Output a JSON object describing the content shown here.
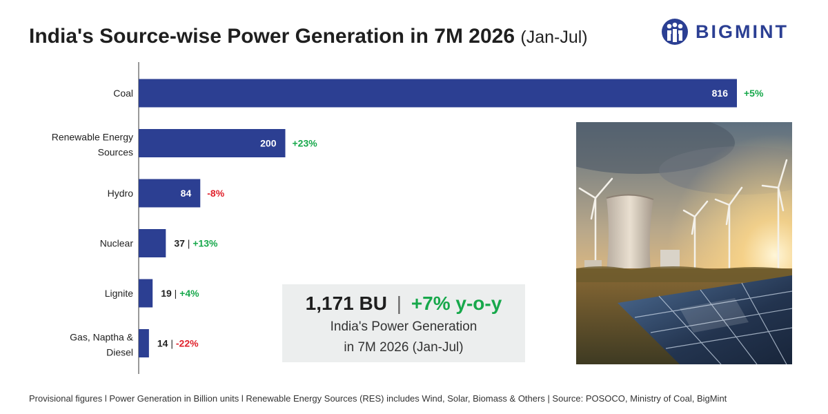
{
  "title": "India's Source-wise Power Generation in 7M 2026",
  "title_suffix": "(Jan-Jul)",
  "logo": {
    "text": "BIGMINT",
    "icon": "bigmint-people-icon",
    "color": "#2b3f93"
  },
  "chart_data": {
    "type": "bar",
    "orientation": "horizontal",
    "categories": [
      "Coal",
      "Renewable Energy Sources",
      "Hydro",
      "Nuclear",
      "Lignite",
      "Gas, Naptha & Diesel"
    ],
    "category_labels": [
      [
        "Coal"
      ],
      [
        "Renewable Energy",
        "Sources"
      ],
      [
        "Hydro"
      ],
      [
        "Nuclear"
      ],
      [
        "Lignite"
      ],
      [
        "Gas, Naptha &",
        "Diesel"
      ]
    ],
    "values": [
      816,
      200,
      84,
      37,
      19,
      14
    ],
    "value_labels": [
      "816",
      "200",
      "84",
      "37",
      "19",
      "14"
    ],
    "growth": [
      "+5%",
      "+23%",
      "-8%",
      "+13%",
      "+4%",
      "-22%"
    ],
    "growth_direction": [
      "up",
      "up",
      "down",
      "up",
      "up",
      "down"
    ],
    "xlim": [
      0,
      880
    ],
    "bar_color": "#2c3f92",
    "positive_color": "#17a84b",
    "negative_color": "#e0212b",
    "grid": false
  },
  "kpi": {
    "total": "1,171 BU",
    "separator": "|",
    "growth": "+7% y-o-y",
    "caption_line1": "India's Power Generation",
    "caption_line2": "in 7M 2026 (Jan-Jul)"
  },
  "image": {
    "subject": "cooling-tower-wind-turbines-solar-panels-photo"
  },
  "footnote": "Provisional figures l Power Generation in Billion units l Renewable Energy Sources (RES) includes Wind, Solar, Biomass & Others | Source: POSOCO, Ministry of Coal, BigMint"
}
